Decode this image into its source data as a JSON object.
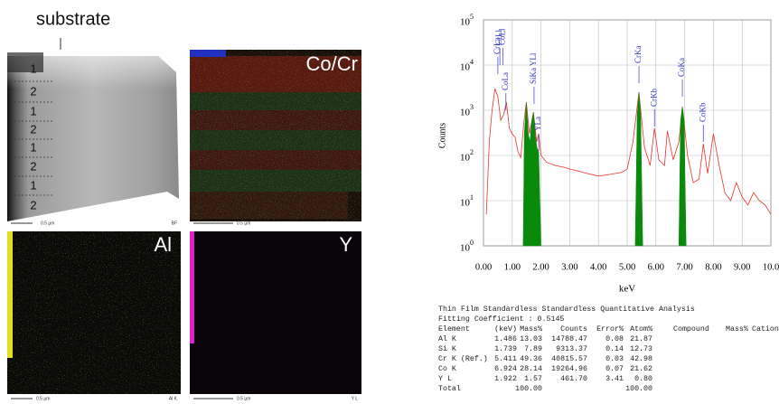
{
  "figure": {
    "substrate_label": "substrate",
    "layer_labels": [
      "1",
      "2",
      "1",
      "2",
      "1",
      "2",
      "1",
      "2"
    ],
    "panels": [
      {
        "scale_label": "0.5 µm",
        "corner_label": "BF"
      },
      {
        "label": "Co/Cr",
        "scale_label": "0.5 µm"
      },
      {
        "label": "Al",
        "scale_label": "0.5 µm",
        "corner_label": "Al K"
      },
      {
        "label": "Y",
        "scale_label": "0.5 µm",
        "corner_label": "Y L"
      }
    ]
  },
  "chart_data": {
    "type": "line",
    "x_label": "keV",
    "y_label": "Counts",
    "log_y": true,
    "grid": true,
    "xlim": [
      0,
      10
    ],
    "xticks": [
      {
        "value": 0,
        "label": "0.00"
      },
      {
        "value": 1,
        "label": "1.00"
      },
      {
        "value": 2,
        "label": "2.00"
      },
      {
        "value": 3,
        "label": "3.00"
      },
      {
        "value": 4,
        "label": "4.00"
      },
      {
        "value": 5,
        "label": "5.00"
      },
      {
        "value": 6,
        "label": "6.00"
      },
      {
        "value": 7,
        "label": "7.00"
      },
      {
        "value": 8,
        "label": "8.00"
      },
      {
        "value": 9,
        "label": "9.00"
      },
      {
        "value": 10,
        "label": "10.0"
      }
    ],
    "ylim": [
      1,
      100000
    ],
    "yticks": [
      {
        "value": 1,
        "label": "10",
        "exponent": "0"
      },
      {
        "value": 10,
        "label": "10",
        "exponent": "1"
      },
      {
        "value": 100,
        "label": "10",
        "exponent": "2"
      },
      {
        "value": 1000,
        "label": "10",
        "exponent": "3"
      },
      {
        "value": 10000,
        "label": "10",
        "exponent": "4"
      },
      {
        "value": 100000,
        "label": "10",
        "exponent": "5"
      }
    ],
    "series": [
      {
        "color": "#e8332a",
        "x": [
          0.1,
          0.2,
          0.3,
          0.4,
          0.5,
          0.6,
          0.7,
          0.8,
          0.9,
          1.0,
          1.1,
          1.2,
          1.3,
          1.4,
          1.49,
          1.6,
          1.74,
          1.85,
          1.92,
          2.0,
          2.2,
          2.5,
          2.8,
          3.0,
          3.3,
          3.6,
          4.0,
          4.4,
          4.8,
          5.0,
          5.2,
          5.41,
          5.6,
          5.8,
          5.95,
          6.1,
          6.3,
          6.4,
          6.6,
          6.8,
          6.92,
          7.1,
          7.3,
          7.5,
          7.65,
          7.8,
          8.0,
          8.2,
          8.4,
          8.6,
          8.8,
          9.0,
          9.2,
          9.4,
          9.6,
          9.8,
          10.0
        ],
        "values": [
          5,
          200,
          1000,
          3000,
          2000,
          600,
          800,
          1500,
          400,
          300,
          250,
          120,
          90,
          500,
          1500,
          300,
          900,
          200,
          300,
          100,
          70,
          60,
          55,
          50,
          45,
          40,
          35,
          38,
          42,
          50,
          200,
          2500,
          150,
          60,
          400,
          80,
          60,
          350,
          80,
          200,
          1200,
          100,
          25,
          30,
          180,
          40,
          300,
          60,
          15,
          10,
          25,
          12,
          8,
          15,
          10,
          8,
          5
        ]
      },
      {
        "color": "#0a8a0a",
        "area": true,
        "x": [
          1.38,
          1.42,
          1.49,
          1.56,
          1.62,
          1.68,
          1.74,
          1.8,
          1.86,
          1.92,
          2.0,
          3.0,
          5.28,
          5.35,
          5.41,
          5.47,
          5.54,
          6.0,
          6.8,
          6.86,
          6.92,
          6.98,
          7.05
        ],
        "values": [
          1,
          300,
          1500,
          300,
          200,
          600,
          900,
          300,
          150,
          120,
          1,
          null,
          1,
          800,
          2500,
          800,
          1,
          null,
          1,
          600,
          1200,
          600,
          1
        ]
      }
    ],
    "annotations": [
      {
        "text": "CrLa",
        "x": 0.5
      },
      {
        "text": "CrLl",
        "x": 0.57
      },
      {
        "text": "CoLl",
        "x": 0.68
      },
      {
        "text": "CoLa",
        "x": 0.78
      },
      {
        "text": "SiKa YLl",
        "x": 1.76
      },
      {
        "text": "YLa",
        "x": 1.92
      },
      {
        "text": "CrKa",
        "x": 5.41
      },
      {
        "text": "CrKb",
        "x": 5.95
      },
      {
        "text": "CoKa",
        "x": 6.92
      },
      {
        "text": "CoKb",
        "x": 7.65
      }
    ]
  },
  "table": {
    "title": "Thin Film Standardless  Standardless Quantitative Analysis",
    "fitting": "Fitting Coefficient : 0.5145",
    "columns": [
      "Element",
      "(keV)",
      "Mass%",
      "Counts",
      "Error%",
      "Atom%",
      "Compound",
      "Mass%",
      "Cation"
    ],
    "rows": [
      [
        "Al K",
        "1.486",
        "13.03",
        "14788.47",
        "0.08",
        "21.87"
      ],
      [
        "Si K",
        "1.739",
        "7.89",
        "9313.37",
        "0.14",
        "12.73"
      ],
      [
        "Cr K  (Ref.)",
        "5.411",
        "49.36",
        "40815.57",
        "0.03",
        "42.98"
      ],
      [
        "Co K",
        "6.924",
        "28.14",
        "19264.96",
        "0.07",
        "21.62"
      ],
      [
        " Y L",
        "1.922",
        "1.57",
        "461.70",
        "3.41",
        "0.80"
      ]
    ],
    "total": {
      "label": "Total",
      "mass": "100.00",
      "atom": "100.00"
    }
  }
}
